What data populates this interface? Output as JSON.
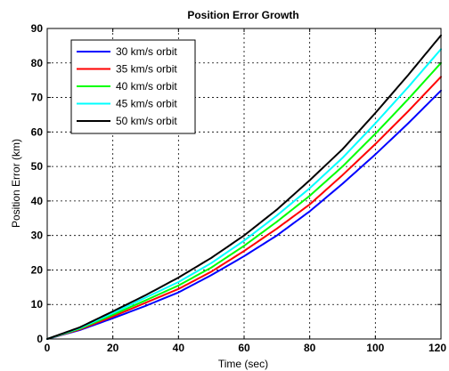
{
  "chart_data": {
    "type": "line",
    "title": "Position Error Growth",
    "xlabel": "Time (sec)",
    "ylabel": "Position Error (km)",
    "xlim": [
      0,
      120
    ],
    "ylim": [
      0,
      90
    ],
    "xticks": [
      0,
      20,
      40,
      60,
      80,
      100,
      120
    ],
    "yticks": [
      0,
      10,
      20,
      30,
      40,
      50,
      60,
      70,
      80,
      90
    ],
    "xtick_labels": [
      "0",
      "20",
      "40",
      "60",
      "80",
      "100",
      "120"
    ],
    "ytick_labels": [
      "0",
      "10",
      "20",
      "30",
      "40",
      "50",
      "60",
      "70",
      "80",
      "90"
    ],
    "grid": true,
    "legend_position": "top-left",
    "x": [
      0,
      10,
      20,
      30,
      40,
      50,
      60,
      70,
      80,
      90,
      100,
      110,
      120
    ],
    "series": [
      {
        "name": "30 km/s orbit",
        "color": "#0000ff",
        "values": [
          0,
          2.6,
          6.0,
          9.6,
          13.5,
          18.5,
          24.0,
          30.0,
          37.0,
          45.0,
          53.5,
          62.5,
          72.0
        ]
      },
      {
        "name": "35 km/s orbit",
        "color": "#ff0000",
        "values": [
          0,
          2.8,
          6.5,
          10.5,
          14.5,
          19.5,
          25.5,
          32.0,
          39.0,
          47.5,
          56.5,
          66.0,
          76.0
        ]
      },
      {
        "name": "40 km/s orbit",
        "color": "#00ff00",
        "values": [
          0,
          3.0,
          7.0,
          11.2,
          15.5,
          20.7,
          27.0,
          34.0,
          41.5,
          50.0,
          59.5,
          69.5,
          80.0
        ]
      },
      {
        "name": "45 km/s orbit",
        "color": "#00ffff",
        "values": [
          0,
          3.2,
          7.5,
          12.0,
          16.5,
          22.0,
          28.5,
          35.8,
          43.7,
          52.5,
          62.5,
          73.0,
          84.0
        ]
      },
      {
        "name": "50 km/s orbit",
        "color": "#000000",
        "values": [
          0,
          3.4,
          8.0,
          12.7,
          17.8,
          23.5,
          30.0,
          37.5,
          46.0,
          55.0,
          65.5,
          76.5,
          88.0
        ]
      }
    ]
  }
}
